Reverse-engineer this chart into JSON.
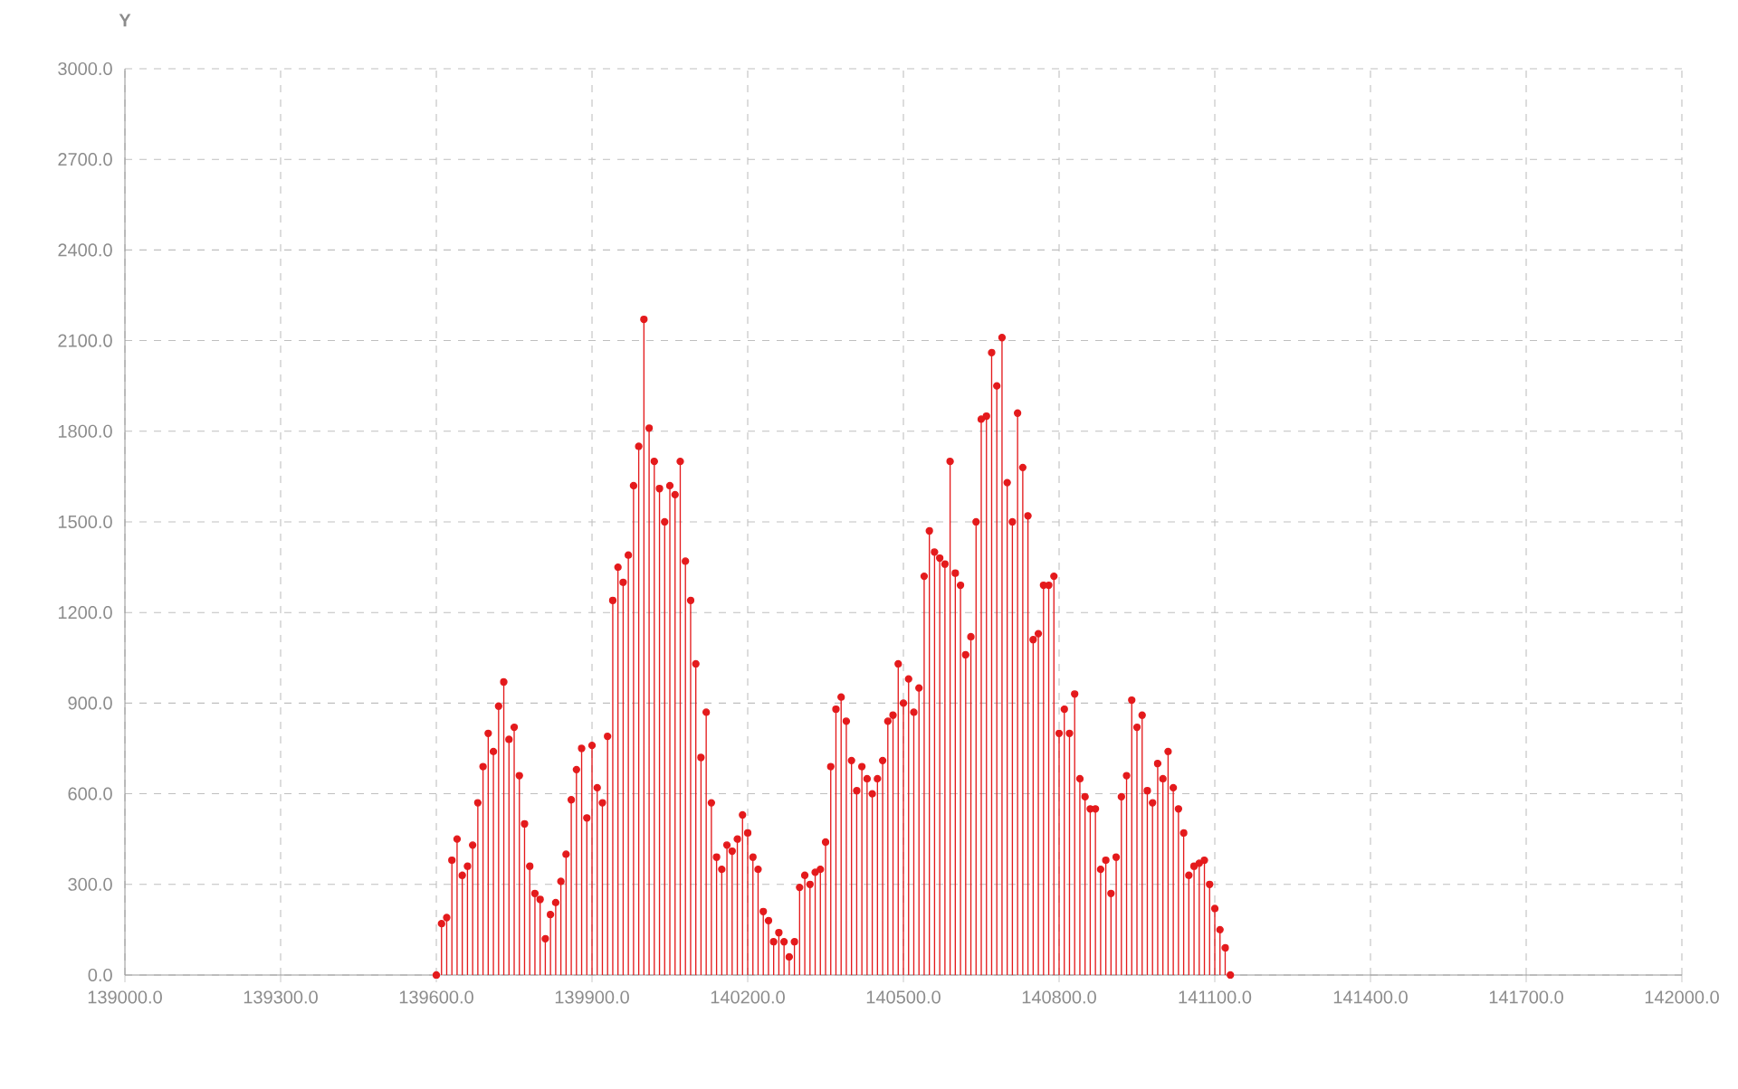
{
  "chart_data": {
    "type": "lollipop",
    "ylabel": "Y",
    "x": [
      139600,
      139610,
      139620,
      139630,
      139640,
      139650,
      139660,
      139670,
      139680,
      139690,
      139700,
      139710,
      139720,
      139730,
      139740,
      139750,
      139760,
      139770,
      139780,
      139790,
      139800,
      139810,
      139820,
      139830,
      139840,
      139850,
      139860,
      139870,
      139880,
      139890,
      139900,
      139910,
      139920,
      139930,
      139940,
      139950,
      139960,
      139970,
      139980,
      139990,
      140000,
      140010,
      140020,
      140030,
      140040,
      140050,
      140060,
      140070,
      140080,
      140090,
      140100,
      140110,
      140120,
      140130,
      140140,
      140150,
      140160,
      140170,
      140180,
      140190,
      140200,
      140210,
      140220,
      140230,
      140240,
      140250,
      140260,
      140270,
      140280,
      140290,
      140300,
      140310,
      140320,
      140330,
      140340,
      140350,
      140360,
      140370,
      140380,
      140390,
      140400,
      140410,
      140420,
      140430,
      140440,
      140450,
      140460,
      140470,
      140480,
      140490,
      140500,
      140510,
      140520,
      140530,
      140540,
      140550,
      140560,
      140570,
      140580,
      140590,
      140600,
      140610,
      140620,
      140630,
      140640,
      140650,
      140660,
      140670,
      140680,
      140690,
      140700,
      140710,
      140720,
      140730,
      140740,
      140750,
      140760,
      140770,
      140780,
      140790,
      140800,
      140810,
      140820,
      140830,
      140840,
      140850,
      140860,
      140870,
      140880,
      140890,
      140900,
      140910,
      140920,
      140930,
      140940,
      140950,
      140960,
      140970,
      140980,
      140990,
      141000,
      141010,
      141020,
      141030,
      141040,
      141050,
      141060,
      141070,
      141080,
      141090,
      141100,
      141110,
      141120,
      141130
    ],
    "values": [
      0,
      170,
      190,
      380,
      450,
      330,
      360,
      430,
      570,
      690,
      800,
      740,
      890,
      970,
      780,
      820,
      660,
      500,
      360,
      270,
      250,
      120,
      200,
      240,
      310,
      400,
      580,
      680,
      750,
      520,
      760,
      620,
      570,
      790,
      1240,
      1350,
      1300,
      1390,
      1620,
      1750,
      2170,
      1810,
      1700,
      1610,
      1500,
      1620,
      1590,
      1700,
      1370,
      1240,
      1030,
      720,
      870,
      570,
      390,
      350,
      430,
      410,
      450,
      530,
      470,
      390,
      350,
      210,
      180,
      110,
      140,
      110,
      60,
      110,
      290,
      330,
      300,
      340,
      350,
      440,
      690,
      880,
      920,
      840,
      710,
      610,
      690,
      650,
      600,
      650,
      710,
      840,
      860,
      1030,
      900,
      980,
      870,
      950,
      1320,
      1470,
      1400,
      1380,
      1360,
      1700,
      1330,
      1290,
      1060,
      1120,
      1500,
      1840,
      1850,
      2060,
      1950,
      2110,
      1630,
      1500,
      1860,
      1680,
      1520,
      1110,
      1130,
      1290,
      1290,
      1320,
      800,
      880,
      800,
      930,
      650,
      590,
      550,
      550,
      350,
      380,
      270,
      390,
      590,
      660,
      910,
      820,
      860,
      610,
      570,
      700,
      650,
      740,
      620,
      550,
      470,
      330,
      360,
      370,
      380,
      300,
      220,
      150,
      90,
      0
    ],
    "color": "#e41a1c",
    "marker": "circle",
    "grid": true,
    "xlim": [
      139000,
      142000
    ],
    "xticks": [
      {
        "value": 139000,
        "label": "139000.0"
      },
      {
        "value": 139300,
        "label": "139300.0"
      },
      {
        "value": 139600,
        "label": "139600.0"
      },
      {
        "value": 139900,
        "label": "139900.0"
      },
      {
        "value": 140200,
        "label": "140200.0"
      },
      {
        "value": 140500,
        "label": "140500.0"
      },
      {
        "value": 140800,
        "label": "140800.0"
      },
      {
        "value": 141100,
        "label": "141100.0"
      },
      {
        "value": 141400,
        "label": "141400.0"
      },
      {
        "value": 141700,
        "label": "141700.0"
      },
      {
        "value": 142000,
        "label": "142000.0"
      }
    ],
    "ylim": [
      0,
      3000
    ],
    "yticks": [
      {
        "value": 0,
        "label": "0.0"
      },
      {
        "value": 300,
        "label": "300.0"
      },
      {
        "value": 600,
        "label": "600.0"
      },
      {
        "value": 900,
        "label": "900.0"
      },
      {
        "value": 1200,
        "label": "1200.0"
      },
      {
        "value": 1500,
        "label": "1500.0"
      },
      {
        "value": 1800,
        "label": "1800.0"
      },
      {
        "value": 2100,
        "label": "2100.0"
      },
      {
        "value": 2400,
        "label": "2400.0"
      },
      {
        "value": 2700,
        "label": "2700.0"
      },
      {
        "value": 3000,
        "label": "3000.0"
      }
    ]
  }
}
